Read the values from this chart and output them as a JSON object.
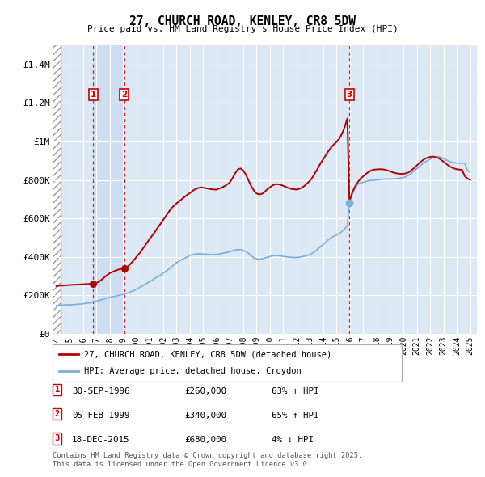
{
  "title1": "27, CHURCH ROAD, KENLEY, CR8 5DW",
  "title2": "Price paid vs. HM Land Registry's House Price Index (HPI)",
  "ylabel_vals": [
    "£0",
    "£200K",
    "£400K",
    "£600K",
    "£800K",
    "£1M",
    "£1.2M",
    "£1.4M"
  ],
  "yticks": [
    0,
    200000,
    400000,
    600000,
    800000,
    1000000,
    1200000,
    1400000
  ],
  "ylim": [
    0,
    1500000
  ],
  "xlim_start": 1993.7,
  "xlim_end": 2025.5,
  "hpi_color": "#7aade0",
  "price_color": "#b30000",
  "bg_color": "#dde8f5",
  "grid_color": "#ffffff",
  "sale1_x": 1996.75,
  "sale1_y": 260000,
  "sale2_x": 1999.09,
  "sale2_y": 340000,
  "sale3_x": 2015.96,
  "sale3_y": 680000,
  "legend_line1": "27, CHURCH ROAD, KENLEY, CR8 5DW (detached house)",
  "legend_line2": "HPI: Average price, detached house, Croydon",
  "table_rows": [
    {
      "num": 1,
      "date": "30-SEP-1996",
      "price": "£260,000",
      "change": "63% ↑ HPI"
    },
    {
      "num": 2,
      "date": "05-FEB-1999",
      "price": "£340,000",
      "change": "65% ↑ HPI"
    },
    {
      "num": 3,
      "date": "18-DEC-2015",
      "price": "£680,000",
      "change": "4% ↓ HPI"
    }
  ],
  "footnote1": "Contains HM Land Registry data © Crown copyright and database right 2025.",
  "footnote2": "This data is licensed under the Open Government Licence v3.0.",
  "hpi_series": [
    [
      1994.0,
      148000
    ],
    [
      1994.2,
      149000
    ],
    [
      1994.4,
      150000
    ],
    [
      1994.6,
      150500
    ],
    [
      1994.8,
      151000
    ],
    [
      1995.0,
      151500
    ],
    [
      1995.2,
      152000
    ],
    [
      1995.4,
      153000
    ],
    [
      1995.6,
      154000
    ],
    [
      1995.8,
      155000
    ],
    [
      1996.0,
      157000
    ],
    [
      1996.2,
      159000
    ],
    [
      1996.4,
      161000
    ],
    [
      1996.6,
      163000
    ],
    [
      1996.75,
      165000
    ],
    [
      1996.9,
      168000
    ],
    [
      1997.0,
      170000
    ],
    [
      1997.2,
      174000
    ],
    [
      1997.4,
      178000
    ],
    [
      1997.6,
      182000
    ],
    [
      1997.8,
      186000
    ],
    [
      1998.0,
      190000
    ],
    [
      1998.2,
      193000
    ],
    [
      1998.4,
      196000
    ],
    [
      1998.6,
      199000
    ],
    [
      1998.8,
      202000
    ],
    [
      1999.0,
      205000
    ],
    [
      1999.09,
      207000
    ],
    [
      1999.3,
      212000
    ],
    [
      1999.5,
      217000
    ],
    [
      1999.7,
      222000
    ],
    [
      1999.9,
      228000
    ],
    [
      2000.0,
      232000
    ],
    [
      2000.3,
      244000
    ],
    [
      2000.6,
      256000
    ],
    [
      2000.9,
      268000
    ],
    [
      2001.0,
      272000
    ],
    [
      2001.3,
      285000
    ],
    [
      2001.6,
      298000
    ],
    [
      2001.9,
      310000
    ],
    [
      2002.0,
      315000
    ],
    [
      2002.3,
      330000
    ],
    [
      2002.6,
      348000
    ],
    [
      2002.9,
      363000
    ],
    [
      2003.0,
      370000
    ],
    [
      2003.3,
      382000
    ],
    [
      2003.6,
      393000
    ],
    [
      2003.9,
      403000
    ],
    [
      2004.0,
      408000
    ],
    [
      2004.2,
      412000
    ],
    [
      2004.4,
      415000
    ],
    [
      2004.6,
      416000
    ],
    [
      2004.8,
      416000
    ],
    [
      2005.0,
      415000
    ],
    [
      2005.2,
      414000
    ],
    [
      2005.4,
      413000
    ],
    [
      2005.6,
      412000
    ],
    [
      2005.8,
      412000
    ],
    [
      2006.0,
      413000
    ],
    [
      2006.2,
      415000
    ],
    [
      2006.4,
      418000
    ],
    [
      2006.6,
      421000
    ],
    [
      2006.8,
      424000
    ],
    [
      2007.0,
      427000
    ],
    [
      2007.2,
      432000
    ],
    [
      2007.4,
      436000
    ],
    [
      2007.6,
      438000
    ],
    [
      2007.8,
      438000
    ],
    [
      2008.0,
      435000
    ],
    [
      2008.2,
      428000
    ],
    [
      2008.4,
      418000
    ],
    [
      2008.6,
      406000
    ],
    [
      2008.8,
      395000
    ],
    [
      2009.0,
      390000
    ],
    [
      2009.2,
      388000
    ],
    [
      2009.4,
      390000
    ],
    [
      2009.6,
      394000
    ],
    [
      2009.8,
      398000
    ],
    [
      2010.0,
      402000
    ],
    [
      2010.2,
      406000
    ],
    [
      2010.4,
      408000
    ],
    [
      2010.6,
      407000
    ],
    [
      2010.8,
      405000
    ],
    [
      2011.0,
      403000
    ],
    [
      2011.2,
      401000
    ],
    [
      2011.4,
      399000
    ],
    [
      2011.6,
      398000
    ],
    [
      2011.8,
      397000
    ],
    [
      2012.0,
      397000
    ],
    [
      2012.2,
      399000
    ],
    [
      2012.4,
      401000
    ],
    [
      2012.6,
      404000
    ],
    [
      2012.8,
      408000
    ],
    [
      2013.0,
      412000
    ],
    [
      2013.2,
      420000
    ],
    [
      2013.4,
      430000
    ],
    [
      2013.6,
      442000
    ],
    [
      2013.8,
      455000
    ],
    [
      2014.0,
      465000
    ],
    [
      2014.2,
      478000
    ],
    [
      2014.4,
      490000
    ],
    [
      2014.6,
      500000
    ],
    [
      2014.8,
      508000
    ],
    [
      2015.0,
      514000
    ],
    [
      2015.2,
      522000
    ],
    [
      2015.4,
      532000
    ],
    [
      2015.6,
      546000
    ],
    [
      2015.8,
      562000
    ],
    [
      2015.96,
      680000
    ],
    [
      2016.0,
      690000
    ],
    [
      2016.2,
      730000
    ],
    [
      2016.4,
      760000
    ],
    [
      2016.6,
      778000
    ],
    [
      2016.8,
      785000
    ],
    [
      2017.0,
      788000
    ],
    [
      2017.2,
      792000
    ],
    [
      2017.4,
      796000
    ],
    [
      2017.6,
      798000
    ],
    [
      2017.8,
      799000
    ],
    [
      2018.0,
      800000
    ],
    [
      2018.2,
      802000
    ],
    [
      2018.4,
      804000
    ],
    [
      2018.6,
      805000
    ],
    [
      2018.8,
      805000
    ],
    [
      2019.0,
      805000
    ],
    [
      2019.2,
      806000
    ],
    [
      2019.4,
      807000
    ],
    [
      2019.6,
      808000
    ],
    [
      2019.8,
      810000
    ],
    [
      2020.0,
      812000
    ],
    [
      2020.2,
      818000
    ],
    [
      2020.4,
      825000
    ],
    [
      2020.6,
      835000
    ],
    [
      2020.8,
      848000
    ],
    [
      2021.0,
      858000
    ],
    [
      2021.2,
      870000
    ],
    [
      2021.4,
      882000
    ],
    [
      2021.6,
      892000
    ],
    [
      2021.8,
      900000
    ],
    [
      2022.0,
      908000
    ],
    [
      2022.2,
      915000
    ],
    [
      2022.4,
      920000
    ],
    [
      2022.6,
      922000
    ],
    [
      2022.8,
      918000
    ],
    [
      2023.0,
      912000
    ],
    [
      2023.2,
      905000
    ],
    [
      2023.4,
      898000
    ],
    [
      2023.6,
      893000
    ],
    [
      2023.8,
      890000
    ],
    [
      2024.0,
      888000
    ],
    [
      2024.2,
      887000
    ],
    [
      2024.4,
      887000
    ],
    [
      2024.6,
      888000
    ],
    [
      2024.8,
      850000
    ],
    [
      2025.0,
      840000
    ]
  ],
  "price_series": [
    [
      1994.0,
      248000
    ],
    [
      1994.2,
      250000
    ],
    [
      1994.4,
      251000
    ],
    [
      1994.6,
      252000
    ],
    [
      1994.8,
      253000
    ],
    [
      1995.0,
      254000
    ],
    [
      1995.2,
      255000
    ],
    [
      1995.4,
      255500
    ],
    [
      1995.6,
      256000
    ],
    [
      1995.8,
      257000
    ],
    [
      1996.0,
      258000
    ],
    [
      1996.2,
      259000
    ],
    [
      1996.4,
      259500
    ],
    [
      1996.6,
      260000
    ],
    [
      1996.75,
      260000
    ],
    [
      1996.9,
      262000
    ],
    [
      1997.0,
      265000
    ],
    [
      1997.2,
      272000
    ],
    [
      1997.4,
      282000
    ],
    [
      1997.6,
      294000
    ],
    [
      1997.8,
      306000
    ],
    [
      1998.0,
      316000
    ],
    [
      1998.2,
      322000
    ],
    [
      1998.4,
      328000
    ],
    [
      1998.6,
      333000
    ],
    [
      1998.8,
      337000
    ],
    [
      1999.09,
      340000
    ],
    [
      1999.3,
      348000
    ],
    [
      1999.5,
      360000
    ],
    [
      1999.7,
      375000
    ],
    [
      1999.9,
      392000
    ],
    [
      2000.0,
      400000
    ],
    [
      2000.3,
      425000
    ],
    [
      2000.6,
      455000
    ],
    [
      2000.9,
      485000
    ],
    [
      2001.0,
      495000
    ],
    [
      2001.3,
      522000
    ],
    [
      2001.6,
      552000
    ],
    [
      2001.9,
      582000
    ],
    [
      2002.0,
      592000
    ],
    [
      2002.3,
      622000
    ],
    [
      2002.6,
      652000
    ],
    [
      2002.9,
      672000
    ],
    [
      2003.0,
      678000
    ],
    [
      2003.3,
      695000
    ],
    [
      2003.6,
      712000
    ],
    [
      2003.9,
      728000
    ],
    [
      2004.0,
      732000
    ],
    [
      2004.3,
      748000
    ],
    [
      2004.6,
      758000
    ],
    [
      2004.9,
      762000
    ],
    [
      2005.0,
      760000
    ],
    [
      2005.3,
      756000
    ],
    [
      2005.6,
      752000
    ],
    [
      2005.9,
      750000
    ],
    [
      2006.0,
      750000
    ],
    [
      2006.3,
      758000
    ],
    [
      2006.6,
      768000
    ],
    [
      2006.9,
      782000
    ],
    [
      2007.0,
      788000
    ],
    [
      2007.2,
      810000
    ],
    [
      2007.4,
      835000
    ],
    [
      2007.6,
      855000
    ],
    [
      2007.8,
      860000
    ],
    [
      2008.0,
      850000
    ],
    [
      2008.2,
      828000
    ],
    [
      2008.4,
      798000
    ],
    [
      2008.6,
      768000
    ],
    [
      2008.8,
      745000
    ],
    [
      2009.0,
      730000
    ],
    [
      2009.2,
      725000
    ],
    [
      2009.4,
      728000
    ],
    [
      2009.6,
      738000
    ],
    [
      2009.8,
      752000
    ],
    [
      2010.0,
      762000
    ],
    [
      2010.2,
      772000
    ],
    [
      2010.4,
      778000
    ],
    [
      2010.6,
      778000
    ],
    [
      2010.8,
      775000
    ],
    [
      2011.0,
      770000
    ],
    [
      2011.2,
      764000
    ],
    [
      2011.4,
      758000
    ],
    [
      2011.6,
      754000
    ],
    [
      2011.8,
      752000
    ],
    [
      2012.0,
      750000
    ],
    [
      2012.2,
      754000
    ],
    [
      2012.4,
      760000
    ],
    [
      2012.6,
      770000
    ],
    [
      2012.8,
      783000
    ],
    [
      2013.0,
      796000
    ],
    [
      2013.2,
      815000
    ],
    [
      2013.4,
      838000
    ],
    [
      2013.6,
      862000
    ],
    [
      2013.8,
      888000
    ],
    [
      2014.0,
      908000
    ],
    [
      2014.2,
      930000
    ],
    [
      2014.4,
      952000
    ],
    [
      2014.6,
      970000
    ],
    [
      2014.8,
      986000
    ],
    [
      2015.0,
      998000
    ],
    [
      2015.2,
      1015000
    ],
    [
      2015.4,
      1040000
    ],
    [
      2015.6,
      1075000
    ],
    [
      2015.8,
      1120000
    ],
    [
      2015.96,
      680000
    ],
    [
      2016.0,
      700000
    ],
    [
      2016.2,
      740000
    ],
    [
      2016.4,
      768000
    ],
    [
      2016.6,
      790000
    ],
    [
      2016.8,
      808000
    ],
    [
      2017.0,
      820000
    ],
    [
      2017.2,
      832000
    ],
    [
      2017.4,
      842000
    ],
    [
      2017.6,
      850000
    ],
    [
      2017.8,
      854000
    ],
    [
      2018.0,
      855000
    ],
    [
      2018.2,
      856000
    ],
    [
      2018.4,
      856000
    ],
    [
      2018.6,
      854000
    ],
    [
      2018.8,
      850000
    ],
    [
      2019.0,
      845000
    ],
    [
      2019.2,
      840000
    ],
    [
      2019.4,
      836000
    ],
    [
      2019.6,
      833000
    ],
    [
      2019.8,
      832000
    ],
    [
      2020.0,
      832000
    ],
    [
      2020.2,
      835000
    ],
    [
      2020.4,
      840000
    ],
    [
      2020.6,
      850000
    ],
    [
      2020.8,
      862000
    ],
    [
      2021.0,
      875000
    ],
    [
      2021.2,
      888000
    ],
    [
      2021.4,
      900000
    ],
    [
      2021.6,
      910000
    ],
    [
      2021.8,
      916000
    ],
    [
      2022.0,
      920000
    ],
    [
      2022.2,
      922000
    ],
    [
      2022.4,
      920000
    ],
    [
      2022.6,
      915000
    ],
    [
      2022.8,
      906000
    ],
    [
      2023.0,
      896000
    ],
    [
      2023.2,
      885000
    ],
    [
      2023.4,
      874000
    ],
    [
      2023.6,
      866000
    ],
    [
      2023.8,
      860000
    ],
    [
      2024.0,
      856000
    ],
    [
      2024.2,
      854000
    ],
    [
      2024.4,
      853000
    ],
    [
      2024.6,
      820000
    ],
    [
      2024.8,
      808000
    ],
    [
      2025.0,
      800000
    ]
  ]
}
